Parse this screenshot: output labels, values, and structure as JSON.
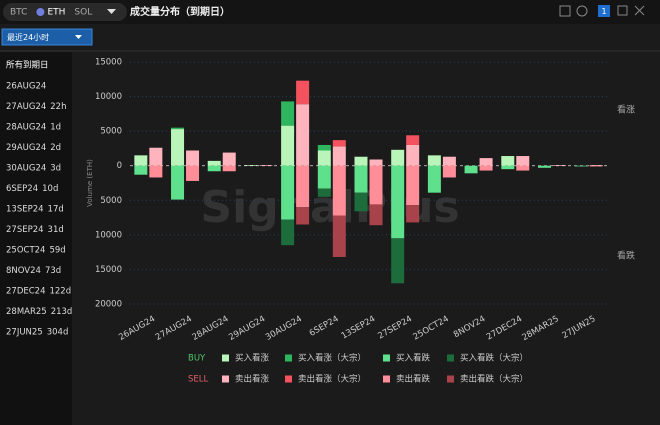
{
  "tabs": [
    "BTC",
    "ETH",
    "SOL"
  ],
  "active_tab": "ETH",
  "title": "成交量分布（到期日）",
  "badge": "1",
  "period_dropdown": "最近24小时",
  "sidebar": {
    "all": "所有到期日",
    "items": [
      {
        "expiry": "26AUG24",
        "remaining": null
      },
      {
        "expiry": "27AUG24",
        "remaining": "22h"
      },
      {
        "expiry": "28AUG24",
        "remaining": "1d"
      },
      {
        "expiry": "29AUG24",
        "remaining": "2d"
      },
      {
        "expiry": "30AUG24",
        "remaining": "3d"
      },
      {
        "expiry": "6SEP24",
        "remaining": "10d"
      },
      {
        "expiry": "13SEP24",
        "remaining": "17d"
      },
      {
        "expiry": "27SEP24",
        "remaining": "31d"
      },
      {
        "expiry": "25OCT24",
        "remaining": "59d"
      },
      {
        "expiry": "8NOV24",
        "remaining": "73d"
      },
      {
        "expiry": "27DEC24",
        "remaining": "122d"
      },
      {
        "expiry": "28MAR25",
        "remaining": "213d"
      },
      {
        "expiry": "27JUN25",
        "remaining": "304d"
      }
    ]
  },
  "chart_data": {
    "type": "stacked_bar",
    "watermark": "SignalPlus",
    "y_label": "Volume (ETH)",
    "annotations": {
      "upper": "看涨",
      "lower": "看跌"
    },
    "categories": [
      "26AUG24",
      "27AUG24",
      "28AUG24",
      "29AUG24",
      "30AUG24",
      "6SEP24",
      "13SEP24",
      "27SEP24",
      "25OCT24",
      "8NOV24",
      "27DEC24",
      "28MAR25",
      "27JUN25"
    ],
    "ylim": [
      -20000,
      15000
    ],
    "yticks": [
      15000,
      10000,
      5000,
      0,
      {
        "value": -5000,
        "label": "5000"
      },
      {
        "value": -10000,
        "label": "10000"
      },
      {
        "value": -15000,
        "label": "15000"
      },
      {
        "value": -20000,
        "label": "20000"
      }
    ],
    "grid": true,
    "legend_groups": [
      "BUY",
      "SELL"
    ],
    "series": [
      {
        "name": "买入看涨",
        "stack": "BUY",
        "color": "#b9f5b9",
        "values": [
          1500,
          5300,
          700,
          100,
          5800,
          2200,
          1300,
          2300,
          1500,
          0,
          1400,
          0,
          0
        ]
      },
      {
        "name": "买入看涨（大宗）",
        "stack": "BUY",
        "color": "#2fb55e",
        "values": [
          0,
          200,
          0,
          0,
          3500,
          800,
          0,
          0,
          0,
          0,
          0,
          0,
          0
        ]
      },
      {
        "name": "买入看跌",
        "stack": "BUY",
        "color": "#5fe08c",
        "values": [
          -1300,
          -4900,
          -800,
          0,
          -7800,
          -3300,
          -3900,
          -10500,
          -3900,
          -1100,
          -500,
          -300,
          -100
        ]
      },
      {
        "name": "买入看跌（大宗）",
        "stack": "BUY",
        "color": "#1d6c3b",
        "values": [
          0,
          0,
          0,
          0,
          -3700,
          -1200,
          -2700,
          -6500,
          0,
          0,
          0,
          0,
          0
        ]
      },
      {
        "name": "卖出看涨",
        "stack": "SELL",
        "color": "#ffb3bd",
        "values": [
          2600,
          2200,
          1900,
          100,
          8900,
          2800,
          900,
          3000,
          1300,
          1100,
          1400,
          100,
          100
        ]
      },
      {
        "name": "卖出看涨（大宗）",
        "stack": "SELL",
        "color": "#f5525f",
        "values": [
          0,
          0,
          0,
          0,
          3400,
          900,
          0,
          1400,
          0,
          0,
          0,
          0,
          0
        ]
      },
      {
        "name": "卖出看跌",
        "stack": "SELL",
        "color": "#ff8e98",
        "values": [
          -1700,
          -2200,
          -800,
          0,
          -6000,
          -7200,
          -5600,
          -5700,
          -1700,
          -700,
          -700,
          0,
          -100
        ]
      },
      {
        "name": "卖出看跌（大宗）",
        "stack": "SELL",
        "color": "#a8434c",
        "values": [
          0,
          0,
          0,
          0,
          -2500,
          -6000,
          -3000,
          -2500,
          0,
          0,
          0,
          0,
          0
        ]
      }
    ]
  }
}
